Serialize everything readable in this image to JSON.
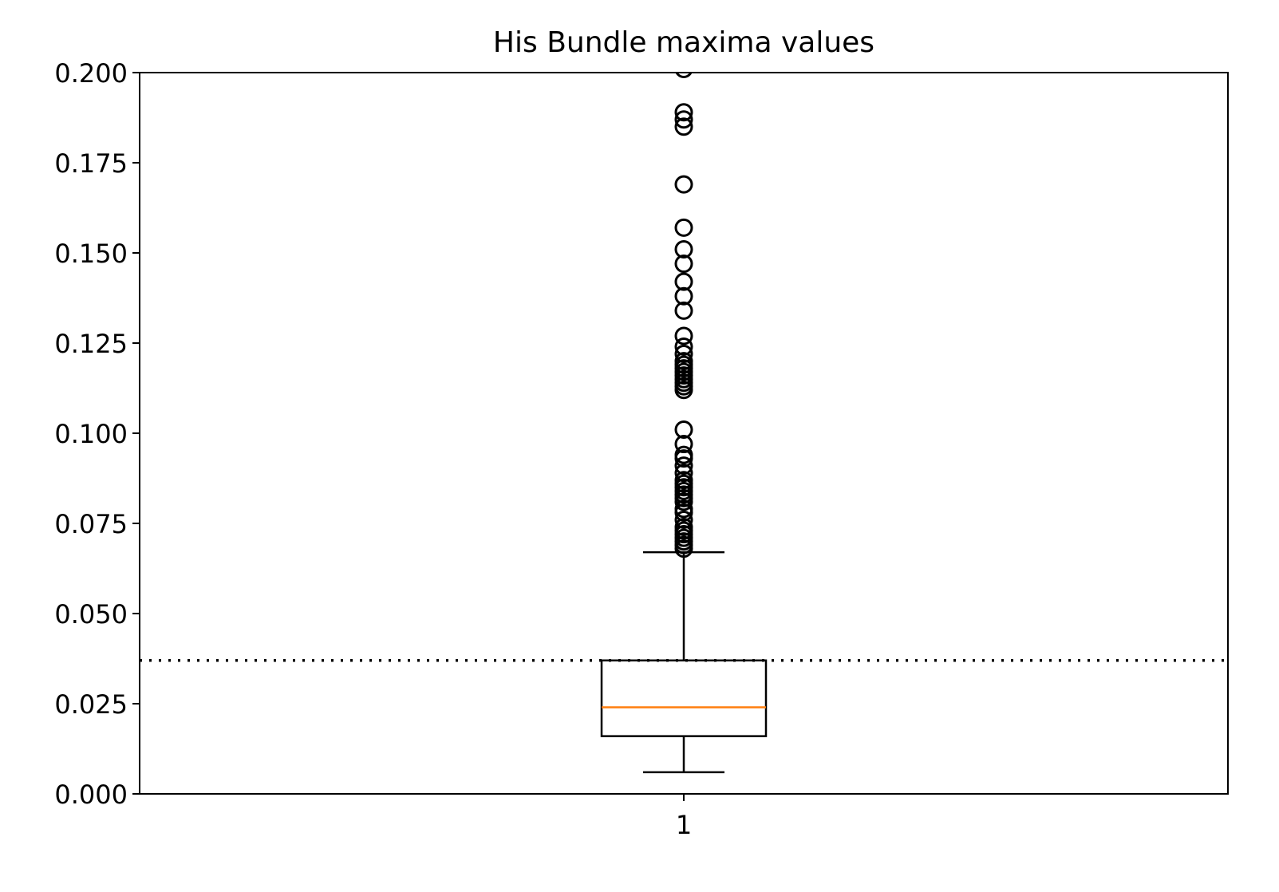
{
  "chart_data": {
    "type": "box",
    "title": "His Bundle maxima values",
    "xlabel": "",
    "ylabel": "",
    "categories": [
      "1"
    ],
    "ylim": [
      0,
      0.2
    ],
    "y_ticks": [
      "0.000",
      "0.025",
      "0.050",
      "0.075",
      "0.100",
      "0.125",
      "0.150",
      "0.175",
      "0.200"
    ],
    "grid": false,
    "legend": "none",
    "boxes": [
      {
        "category": "1",
        "whisker_low": 0.006,
        "q1": 0.016,
        "median": 0.024,
        "q3": 0.037,
        "whisker_high": 0.067,
        "outliers": [
          0.068,
          0.069,
          0.07,
          0.071,
          0.072,
          0.073,
          0.074,
          0.076,
          0.078,
          0.079,
          0.081,
          0.082,
          0.083,
          0.084,
          0.085,
          0.086,
          0.087,
          0.089,
          0.091,
          0.093,
          0.094,
          0.097,
          0.101,
          0.112,
          0.113,
          0.114,
          0.115,
          0.116,
          0.117,
          0.118,
          0.119,
          0.12,
          0.122,
          0.124,
          0.127,
          0.134,
          0.138,
          0.142,
          0.147,
          0.151,
          0.157,
          0.169,
          0.185,
          0.187,
          0.189,
          0.201
        ]
      }
    ],
    "reference_line": {
      "y": 0.037,
      "style": "dotted"
    },
    "colors": {
      "box": "#000000",
      "median": "#ff7f0e",
      "outlier": "#000000",
      "reference_line": "#000000"
    }
  }
}
